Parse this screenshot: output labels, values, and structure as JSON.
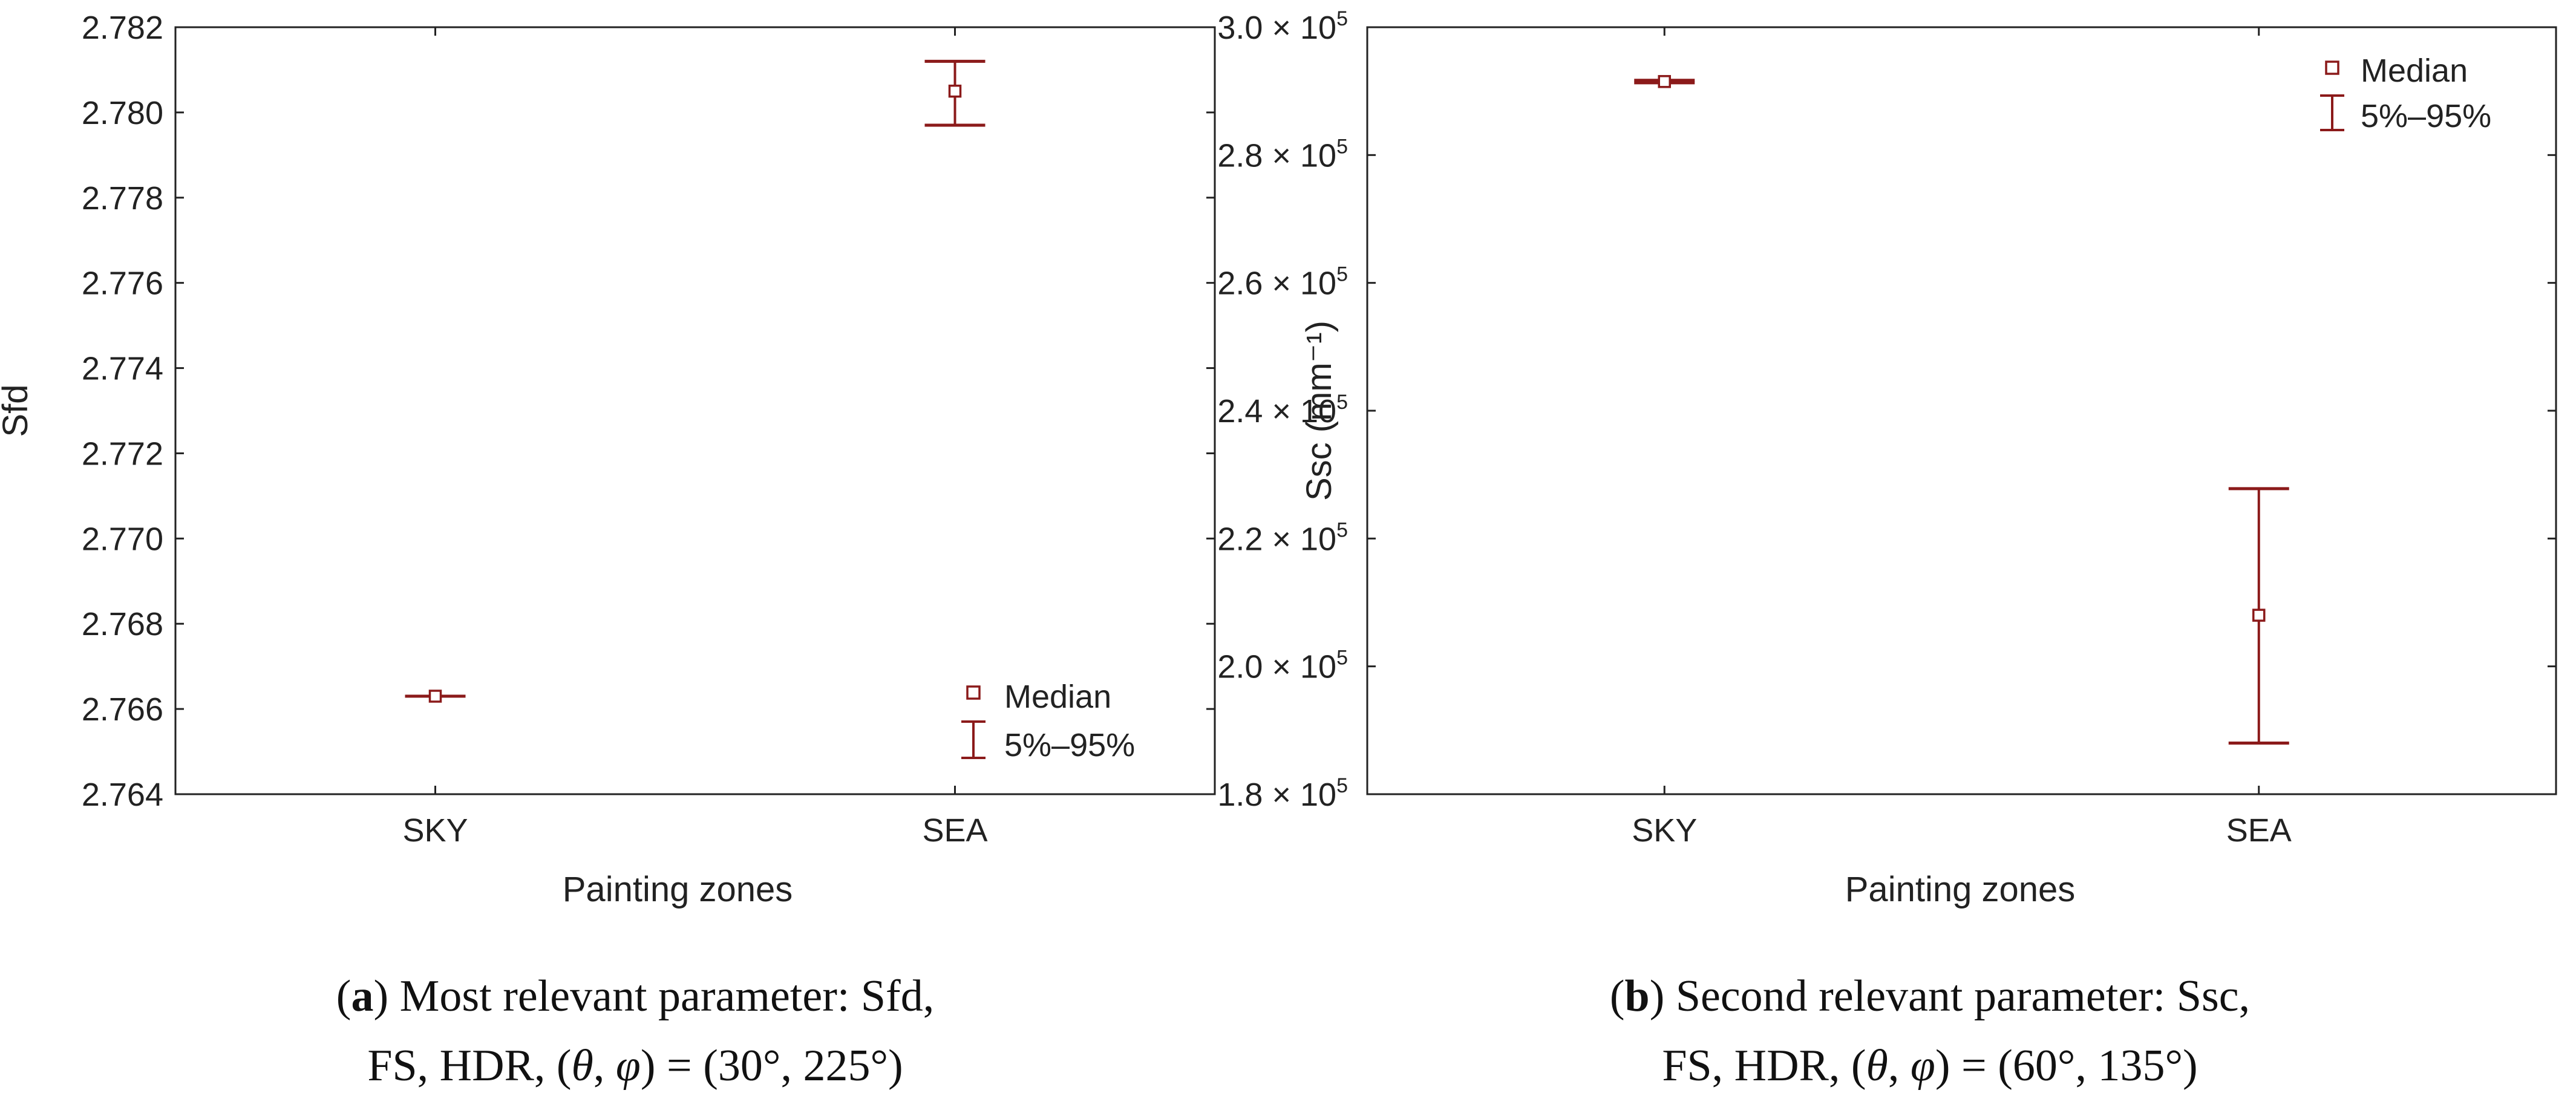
{
  "chart_data": [
    {
      "type": "scatter",
      "categories": [
        "SKY",
        "SEA"
      ],
      "xlabel": "Painting zones",
      "ylabel": "Sfd",
      "ylim": [
        2.764,
        2.782
      ],
      "yticks": [
        "2.764",
        "2.766",
        "2.768",
        "2.770",
        "2.772",
        "2.774",
        "2.776",
        "2.778",
        "2.780",
        "2.782"
      ],
      "series": [
        {
          "name": "Median",
          "values": [
            2.7663,
            2.7805
          ]
        },
        {
          "name": "5%–95%",
          "low": [
            2.7663,
            2.7797
          ],
          "high": [
            2.7663,
            2.7812
          ]
        }
      ],
      "legend": {
        "position": "bottom-right",
        "median": "Median",
        "range": "5%–95%"
      },
      "color": "#8b1a1a",
      "caption": {
        "letter": "a",
        "line1": ") Most relevant parameter: Sfd,",
        "line2a": "FS, HDR, (",
        "theta": "θ",
        "comma": ", ",
        "phi": "φ",
        "line2b": ") = (30°, 225°)"
      }
    },
    {
      "type": "scatter",
      "categories": [
        "SKY",
        "SEA"
      ],
      "xlabel": "Painting zones",
      "ylabel": "Ssc (mm⁻¹)",
      "ylim": [
        180000,
        300000
      ],
      "yticks": [
        "1.8 × 10",
        "2.0 × 10",
        "2.2 × 10",
        "2.4 × 10",
        "2.6 × 10",
        "2.8 × 10",
        "3.0 × 10"
      ],
      "ytick_exponent": "5",
      "series": [
        {
          "name": "Median",
          "values": [
            291500,
            208000
          ]
        },
        {
          "name": "5%–95%",
          "low": [
            291300,
            188000
          ],
          "high": [
            291700,
            227800
          ]
        }
      ],
      "legend": {
        "position": "top-right",
        "median": "Median",
        "range": "5%–95%"
      },
      "color": "#8b1a1a",
      "caption": {
        "letter": "b",
        "line1": ") Second relevant parameter: Ssc,",
        "line2a": "FS, HDR, (",
        "theta": "θ",
        "comma": ", ",
        "phi": "φ",
        "line2b": ") = (60°, 135°)"
      }
    }
  ]
}
